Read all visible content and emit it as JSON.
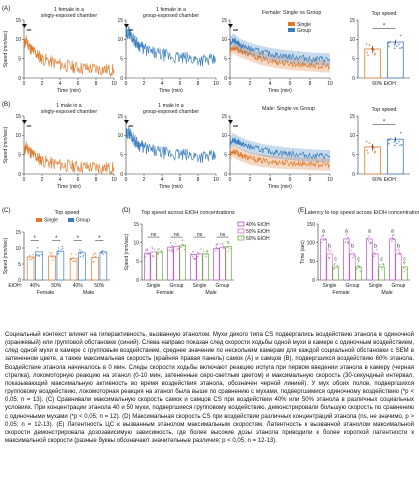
{
  "colors": {
    "single": "#e0782a",
    "group": "#3a7ebf",
    "etoh40": "#b04fc7",
    "etoh50": "#d36fc8",
    "etoh60": "#6aae3e"
  },
  "panels": {
    "A": {
      "letter": "(A)",
      "trace1_title": [
        "1 female in a",
        "singly-exposed chamber"
      ],
      "trace2_title": [
        "1 female in a",
        "group-exposed chamber"
      ],
      "overlay_title": "Female: Single vs Group",
      "top_title": "Top speed",
      "top_xlabel": "60% EtOH",
      "star": "*"
    },
    "B": {
      "letter": "(B)",
      "trace1_title": [
        "1 male in a",
        "singly-exposed chamber"
      ],
      "trace2_title": [
        "1 male in a",
        "group-exposed chamber"
      ],
      "overlay_title": "Male: Single vs Group",
      "top_title": "Top speed",
      "top_xlabel": "60% EtOH",
      "star": "*"
    },
    "C": {
      "letter": "(C)",
      "title": "Top speed",
      "legend_single": "Single",
      "legend_group": "Group",
      "etoh_label": "EtOH:",
      "ticks": [
        "40%",
        "50%",
        "40%",
        "50%"
      ],
      "sex_labels": [
        "Female",
        "Male"
      ],
      "stars": [
        "*",
        "*",
        "*",
        "*"
      ]
    },
    "D": {
      "letter": "(D)",
      "title": "Top speed across EtOH concentrations",
      "legend": [
        "40% EtOH",
        "50% EtOH",
        "60% EtOH"
      ],
      "ticks": [
        "Single",
        "Group",
        "Single",
        "Group"
      ],
      "sex_labels": [
        "Female",
        "Male"
      ],
      "ns": [
        "ns",
        "ns",
        "ns",
        "ns"
      ]
    },
    "E": {
      "letter": "(E)",
      "title": "Latency to top speed across EtOH concentrations",
      "ticks": [
        "Single",
        "Group",
        "Single",
        "Group"
      ],
      "sex_labels": [
        "Female",
        "Male"
      ]
    }
  },
  "axes": {
    "speed": "Speed (mm/sec)",
    "time_min": "Time (min)",
    "time_sec": "Time (sec)"
  },
  "chart_data": [
    {
      "panel": "A",
      "type": "line",
      "xlabel": "Time (min)",
      "ylabel": "Speed (mm/sec)",
      "xlim": [
        0,
        10
      ],
      "ylim": [
        0,
        15
      ],
      "x_ticks": [
        0,
        2,
        4,
        6,
        8,
        10
      ],
      "y_ticks": [
        0,
        5,
        10,
        15
      ],
      "series": [
        {
          "color": "#e0782a",
          "x": [
            0,
            0.3,
            0.6,
            1,
            1.5,
            2,
            3,
            4,
            5,
            6,
            7,
            8,
            9,
            10
          ],
          "y": [
            9,
            9.5,
            8,
            7,
            6,
            5,
            4.2,
            3.5,
            3,
            2.7,
            2.5,
            2.3,
            2.2,
            2
          ]
        }
      ]
    },
    {
      "panel": "A",
      "type": "line",
      "xlabel": "Time (min)",
      "xlim": [
        0,
        10
      ],
      "ylim": [
        0,
        15
      ],
      "x_ticks": [
        0,
        2,
        4,
        6,
        8,
        10
      ],
      "y_ticks": [
        0,
        5,
        10,
        15
      ],
      "series": [
        {
          "color": "#3a7ebf",
          "x": [
            0,
            0.3,
            0.6,
            1,
            1.5,
            2,
            3,
            4,
            5,
            6,
            7,
            8,
            9,
            10
          ],
          "y": [
            11,
            12,
            11,
            9.5,
            8.5,
            7.5,
            6.5,
            6,
            5.5,
            5.2,
            5,
            4.8,
            4.6,
            4.5
          ]
        }
      ]
    },
    {
      "panel": "A",
      "type": "line",
      "xlabel": "Time (min)",
      "xlim": [
        0,
        10
      ],
      "ylim": [
        0,
        15
      ],
      "x_ticks": [
        0,
        2,
        4,
        6,
        8,
        10
      ],
      "y_ticks": [
        0,
        5,
        10,
        15
      ],
      "series": [
        {
          "name": "Single",
          "color": "#e0782a",
          "x": [
            0,
            0.3,
            0.6,
            1,
            1.5,
            2,
            3,
            4,
            5,
            6,
            7,
            8,
            9,
            10
          ],
          "y": [
            7,
            8,
            7.5,
            7,
            6.5,
            6,
            5,
            4.5,
            4,
            3.7,
            3.5,
            3.3,
            3.1,
            3
          ]
        },
        {
          "name": "Group",
          "color": "#3a7ebf",
          "x": [
            0,
            0.3,
            0.6,
            1,
            1.5,
            2,
            3,
            4,
            5,
            6,
            7,
            8,
            9,
            10
          ],
          "y": [
            9,
            10,
            9.5,
            8.5,
            8,
            7.5,
            6.8,
            6.2,
            5.8,
            5.5,
            5.3,
            5,
            4.9,
            4.8
          ]
        }
      ]
    },
    {
      "panel": "A",
      "type": "bar",
      "ylim": [
        0,
        15
      ],
      "y_ticks": [
        0,
        5,
        10,
        15
      ],
      "categories": [
        "Single",
        "Group"
      ],
      "values": [
        7.5,
        9.3
      ],
      "errors": [
        0.8,
        0.6
      ]
    },
    {
      "panel": "B",
      "type": "line",
      "xlabel": "Time (min)",
      "ylabel": "Speed (mm/sec)",
      "xlim": [
        0,
        10
      ],
      "ylim": [
        0,
        15
      ],
      "x_ticks": [
        0,
        2,
        4,
        6,
        8,
        10
      ],
      "y_ticks": [
        0,
        5,
        10,
        15
      ],
      "series": [
        {
          "color": "#e0782a",
          "x": [
            0,
            0.3,
            0.6,
            1,
            1.5,
            2,
            3,
            4,
            5,
            6,
            7,
            8,
            9,
            10
          ],
          "y": [
            6,
            7,
            6,
            5,
            4.2,
            3.5,
            2.8,
            2.4,
            2.1,
            1.9,
            1.8,
            1.7,
            1.6,
            1.5
          ]
        }
      ]
    },
    {
      "panel": "B",
      "type": "line",
      "xlabel": "Time (min)",
      "xlim": [
        0,
        10
      ],
      "ylim": [
        0,
        15
      ],
      "x_ticks": [
        0,
        2,
        4,
        6,
        8,
        10
      ],
      "y_ticks": [
        0,
        5,
        10,
        15
      ],
      "series": [
        {
          "color": "#3a7ebf",
          "x": [
            0,
            0.3,
            0.6,
            1,
            1.5,
            2,
            3,
            4,
            5,
            6,
            7,
            8,
            9,
            10
          ],
          "y": [
            10,
            11,
            10,
            8.5,
            7.5,
            6.8,
            6,
            5.5,
            5.2,
            5,
            4.8,
            4.6,
            4.5,
            4.4
          ]
        }
      ]
    },
    {
      "panel": "B",
      "type": "line",
      "xlabel": "Time (min)",
      "xlim": [
        0,
        10
      ],
      "ylim": [
        0,
        15
      ],
      "x_ticks": [
        0,
        2,
        4,
        6,
        8,
        10
      ],
      "y_ticks": [
        0,
        5,
        10,
        15
      ],
      "series": [
        {
          "name": "Single",
          "color": "#e0782a",
          "x": [
            0,
            0.3,
            0.6,
            1,
            1.5,
            2,
            3,
            4,
            5,
            6,
            7,
            8,
            9,
            10
          ],
          "y": [
            5,
            6,
            5.5,
            5,
            4.5,
            4,
            3.5,
            3.2,
            3,
            2.8,
            2.7,
            2.6,
            2.5,
            2.4
          ]
        },
        {
          "name": "Group",
          "color": "#3a7ebf",
          "x": [
            0,
            0.3,
            0.6,
            1,
            1.5,
            2,
            3,
            4,
            5,
            6,
            7,
            8,
            9,
            10
          ],
          "y": [
            8,
            9,
            8.5,
            8,
            7.4,
            7,
            6.3,
            5.8,
            5.5,
            5.2,
            5,
            4.8,
            4.7,
            4.6
          ]
        }
      ]
    },
    {
      "panel": "B",
      "type": "bar",
      "ylim": [
        0,
        15
      ],
      "y_ticks": [
        0,
        5,
        10,
        15
      ],
      "categories": [
        "Single",
        "Group"
      ],
      "values": [
        7,
        9
      ],
      "errors": [
        0.8,
        0.6
      ]
    },
    {
      "panel": "C",
      "type": "bar",
      "ylabel": "Speed (mm/sec)",
      "ylim": [
        0,
        15
      ],
      "y_ticks": [
        0,
        5,
        10,
        15
      ],
      "categories": [
        "Female 40%",
        "Female 50%",
        "Male 40%",
        "Male 50%"
      ],
      "series": [
        {
          "name": "Single",
          "values": [
            7.2,
            7.5,
            6.8,
            7.0
          ]
        },
        {
          "name": "Group",
          "values": [
            8.8,
            9.0,
            8.5,
            8.7
          ]
        }
      ]
    },
    {
      "panel": "D",
      "type": "bar",
      "ylabel": "Speed (mm/sec)",
      "ylim": [
        0,
        15
      ],
      "y_ticks": [
        0,
        5,
        10,
        15
      ],
      "categories": [
        "Female Single",
        "Female Group",
        "Male Single",
        "Male Group"
      ],
      "series": [
        {
          "name": "40% EtOH",
          "values": [
            7.2,
            8.8,
            6.8,
            8.5
          ]
        },
        {
          "name": "50% EtOH",
          "values": [
            7.5,
            9.0,
            7.0,
            8.7
          ]
        },
        {
          "name": "60% EtOH",
          "values": [
            7.5,
            9.3,
            7.0,
            9.0
          ]
        }
      ]
    },
    {
      "panel": "E",
      "type": "bar",
      "ylabel": "Time (sec)",
      "ylim": [
        0,
        150
      ],
      "y_ticks": [
        0,
        50,
        100,
        150
      ],
      "categories": [
        "Female Single",
        "Female Group",
        "Male Single",
        "Male Group"
      ],
      "series": [
        {
          "name": "40% EtOH",
          "values": [
            110,
            110,
            110,
            110
          ],
          "letters": [
            "a",
            "a",
            "a",
            "a"
          ]
        },
        {
          "name": "50% EtOH",
          "values": [
            70,
            70,
            70,
            70
          ],
          "letters": [
            "b",
            "b",
            "b",
            "b"
          ]
        },
        {
          "name": "60% EtOH",
          "values": [
            35,
            35,
            35,
            35
          ],
          "letters": [
            "c",
            "c",
            "c",
            "c"
          ]
        }
      ]
    }
  ],
  "caption": "Социальный контекст влияет на гиперактивность, вызванную этанолом. Мухи дикого типа CS подвергались воздействию этанола в одиночной (оранжевый) или групповой обстановке (синий). Слева направо показан след скорости ходьбы одной мухи в камере с одиночным воздействием, след одной мухи в камере с групповым воздействием, среднее значение по нескольким камерам для каждой социальной обстановки с SEM в затененном цвете, а также максимальная скорость (крайняя правая панель) самок (A) и самцов (B), подвергшихся воздействию 60% этанола. Воздействие этанола начиналось в 0 мин. Следы скорости ходьбы включают реакцию испуга при первом введении этанола в камеру (черная стрелка), локомоторную реакцию на этанол (0-10 мин, затененные серо-светлым цветом) и максимальную скорость (30-секундный интервал, показывающий максимальную активность во время воздействия этанола, обозначен черной линией). У мух обоих полов, подвергшихся групповому воздействию, локомоторная реакция на этанол была выше по сравнению с мухами, подвергшимися одиночному воздействию (*p < 0,05; n = 13). (C) Сравнивали максимальную скорость самок и самцов CS при воздействии 40% или 50% этанола в различных социальных условиях. При концентрации этанола 40 и 50 мухи, подвергшиеся групповому воздействию, демонстрировали большую скорость по сравнению с одиночными мухами (*p < 0,05; n = 12). (D) Максимальная скорость CS при воздействии различных концентраций этанола (ns, не значимо, p > 0,05; n = 12-13). (E) Латентность ЦС к вызванным этанолом максимальным скоростям. Латентность к вызванной этанолом максимальной скорости демонстрировала дозозависимую зависимость, где более высокие дозы этанола приводили к более короткой латентности к максимальной скорости (разные буквы обозначают значительные различия; p < 0,05; n = 12-13)."
}
